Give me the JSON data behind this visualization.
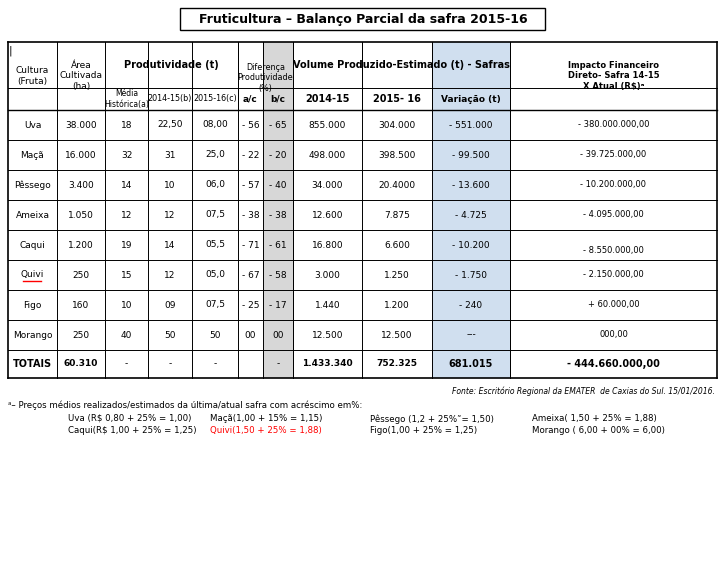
{
  "title": "Fruticultura – Balanço Parcial da safra 2015-16",
  "bg_color": "#ffffff",
  "gray_col_color": "#b0b0b0",
  "blue_col_color": "#c5d8ec",
  "title_border_color": "#000000",
  "rows": [
    [
      "Uva",
      "38.000",
      "18",
      "22,50",
      "08,00",
      "- 56",
      "- 65",
      "855.000",
      "304.000",
      "- 551.000",
      "- 380.000.000,00"
    ],
    [
      "Maçã",
      "16.000",
      "32",
      "31",
      "25,0",
      "- 22",
      "- 20",
      "498.000",
      "398.500",
      "- 99.500",
      "- 39.725.000,00"
    ],
    [
      "Pêssego",
      "3.400",
      "14",
      "10",
      "06,0",
      "- 57",
      "- 40",
      "34.000",
      "20.4000",
      "- 13.600",
      "- 10.200.000,00"
    ],
    [
      "Ameixa",
      "1.050",
      "12",
      "12",
      "07,5",
      "- 38",
      "- 38",
      "12.600",
      "7.875",
      "- 4.725",
      "- 4.095.000,00"
    ],
    [
      "Caqui",
      "1.200",
      "19",
      "14",
      "05,5",
      "- 71",
      "- 61",
      "16.800",
      "6.600",
      "- 10.200",
      "- 8.550.000,00"
    ],
    [
      "Quivi",
      "250",
      "15",
      "12",
      "05,0",
      "- 67",
      "- 58",
      "3.000",
      "1.250",
      "- 1.750",
      "- 2.150.000,00"
    ],
    [
      "Figo",
      "160",
      "10",
      "09",
      "07,5",
      "- 25",
      "- 17",
      "1.440",
      "1.200",
      "- 240",
      "+ 60.000,00"
    ],
    [
      "Morango",
      "250",
      "40",
      "50",
      "50",
      "00",
      "00",
      "12.500",
      "12.500",
      "---",
      "000,00"
    ]
  ],
  "totals_row": [
    "TOTAIS",
    "60.310",
    "-",
    "-",
    "-",
    "",
    "-",
    "1.433.340",
    "752.325",
    "681.015",
    "- 444.660.000,00"
  ],
  "source": "Fonte: Escritório Regional da EMATER  de Caxias do Sul. 15/01/2016.",
  "footnote_label": "ᵃ– Preços médios realizados/estimados da última/atual safra com acréscimo em%:",
  "footnote_row1": [
    [
      "Uva (R$ 0,80 + 25% = 1,00)",
      false
    ],
    [
      "Maçã(1,00 + 15% = 1,15)",
      false
    ],
    [
      "Pêssego (1,2 + 25%˜= 1,50)",
      false
    ],
    [
      "Ameixa( 1,50 + 25% = 1,88)",
      false
    ]
  ],
  "footnote_row2": [
    [
      "Caqui(R$ 1,00 + 25% = 1,25)",
      false
    ],
    [
      "Quivi(1,50 + 25% = 1,88)",
      true
    ],
    [
      "Figo(1,00 + 25% = 1,25)",
      false
    ],
    [
      "Morango ( 6,00 + 00% = 6,00)",
      false
    ]
  ]
}
